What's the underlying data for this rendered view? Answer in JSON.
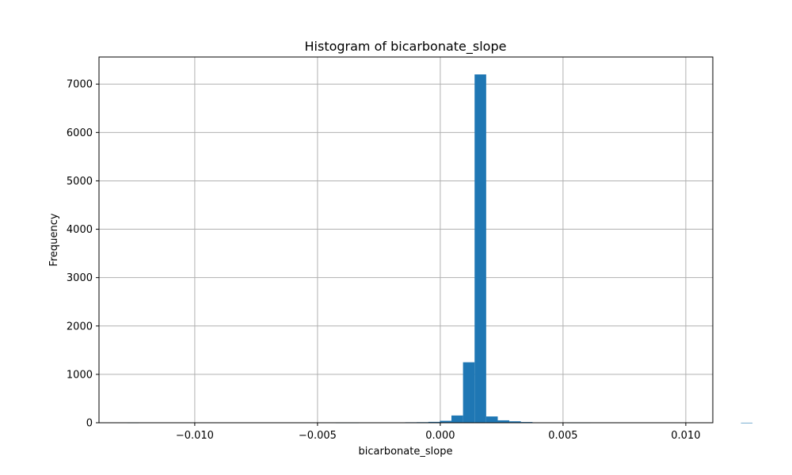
{
  "chart_data": {
    "type": "bar",
    "title": "Histogram of bicarbonate_slope",
    "xlabel": "bicarbonate_slope",
    "ylabel": "Frequency",
    "xlim": [
      -0.0139,
      0.0111
    ],
    "ylim": [
      0,
      7560
    ],
    "xticks": [
      -0.01,
      -0.005,
      0.0,
      0.005,
      0.01
    ],
    "xtick_labels": [
      "−0.010",
      "−0.005",
      "0.000",
      "0.005",
      "0.010"
    ],
    "yticks": [
      0,
      1000,
      2000,
      3000,
      4000,
      5000,
      6000,
      7000
    ],
    "ytick_labels": [
      "0",
      "1000",
      "2000",
      "3000",
      "4000",
      "5000",
      "6000",
      "7000"
    ],
    "grid": true,
    "bar_color": "#1f77b4",
    "bin_start": -0.01275,
    "bin_width": 0.0004716,
    "bin_counts": [
      1,
      0,
      0,
      0,
      0,
      0,
      0,
      0,
      0,
      0,
      0,
      0,
      0,
      0,
      0,
      0,
      0,
      0,
      1,
      1,
      2,
      3,
      5,
      8,
      10,
      12,
      18,
      40,
      150,
      1250,
      7200,
      130,
      50,
      30,
      15,
      8,
      4,
      2,
      1,
      1,
      0,
      0,
      0,
      0,
      0,
      0,
      0,
      0,
      0,
      0,
      0,
      0,
      0,
      1
    ]
  }
}
